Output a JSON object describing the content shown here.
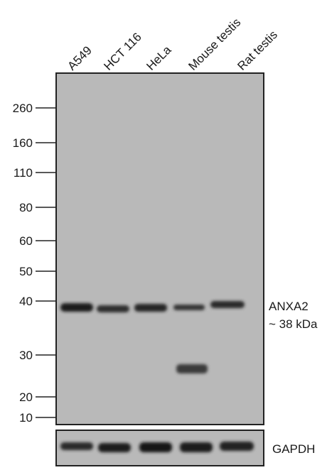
{
  "lanes": [
    "A549",
    "HCT 116",
    "HeLa",
    "Mouse testis",
    "Rat testis"
  ],
  "mw_markers": [
    "260",
    "160",
    "110",
    "80",
    "60",
    "50",
    "40",
    "30",
    "20",
    "10"
  ],
  "target": {
    "name": "ANXA2",
    "size": "~ 38 kDa"
  },
  "loading_control": "GAPDH",
  "colors": {
    "membrane": "#b9b9b9",
    "band": "#1c1c1c",
    "frame": "#222222"
  },
  "band_intensity": {
    "anxa2_38kda": [
      1.0,
      0.7,
      0.85,
      0.6,
      0.8
    ],
    "extra_27kda": [
      0,
      0,
      0,
      0.75,
      0
    ],
    "gapdh": [
      0.8,
      0.95,
      1.0,
      0.95,
      0.9
    ]
  }
}
